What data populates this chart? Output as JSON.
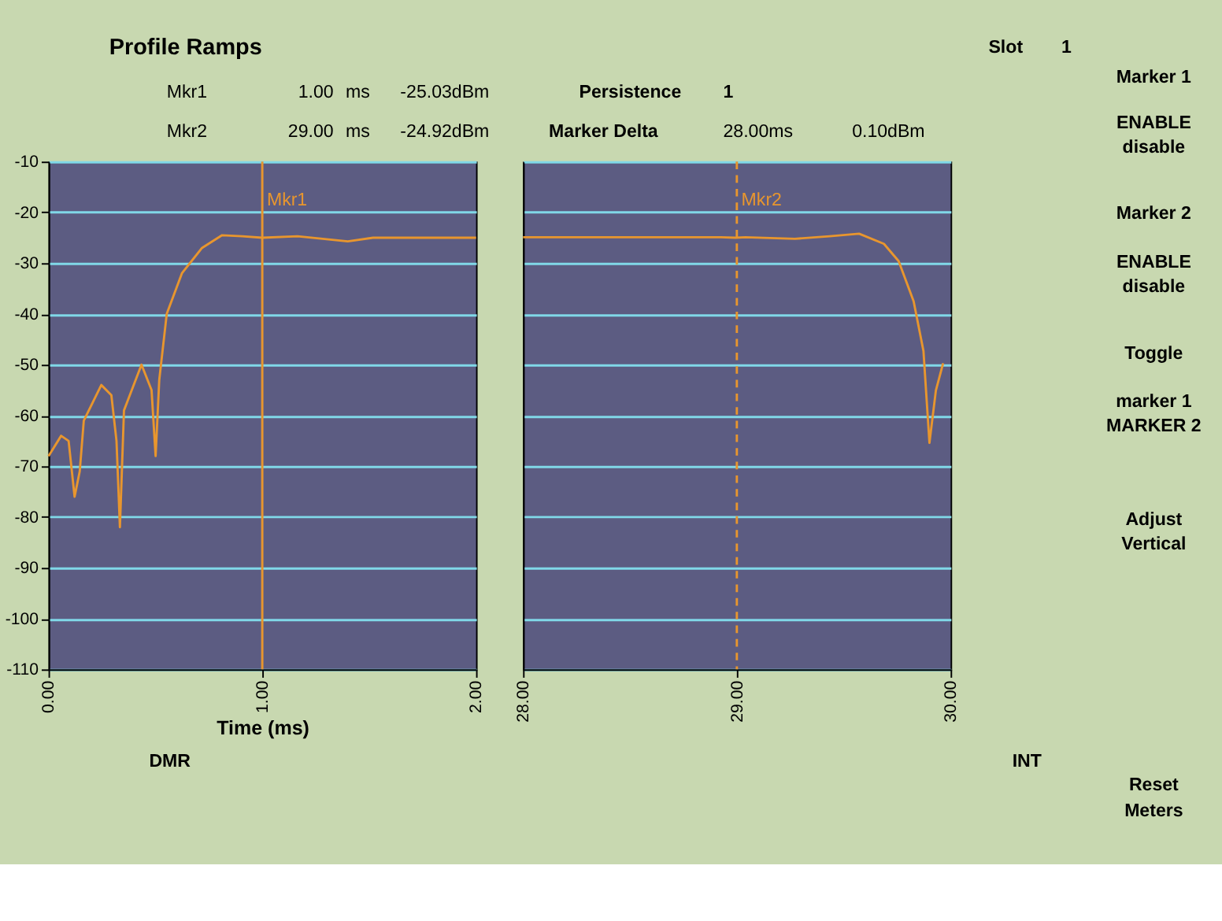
{
  "chart_data": [
    {
      "type": "line",
      "title": "Profile Ramps",
      "xlabel": "Time (ms)",
      "series": [
        {
          "color": "#e8962e",
          "x": [
            0,
            0.059,
            0.094,
            0.122,
            0.146,
            0.165,
            0.247,
            0.294,
            0.318,
            0.334,
            0.353,
            0.435,
            0.482,
            0.501,
            0.518,
            0.553,
            0.624,
            0.718,
            0.812,
            0.906,
            1.0,
            1.165,
            1.4,
            1.518,
            2.0
          ],
          "values": [
            -68,
            -64,
            -65,
            -76,
            -71,
            -61,
            -54,
            -56,
            -65,
            -82,
            -59,
            -50,
            -55,
            -68,
            -53,
            -40,
            -32,
            -27,
            -24.5,
            -24.7,
            -25,
            -24.7,
            -25.7,
            -25,
            -25
          ]
        }
      ],
      "xlim": [
        0,
        2
      ],
      "xticks": [
        {
          "value": 0,
          "label": "0.00"
        },
        {
          "value": 1,
          "label": "1.00"
        },
        {
          "value": 2,
          "label": "2.00"
        }
      ],
      "ylim": [
        -110,
        -10
      ],
      "yticks": [
        -10,
        -20,
        -30,
        -40,
        -50,
        -60,
        -70,
        -80,
        -90,
        -100,
        -110
      ],
      "grid": "y",
      "ref_lines": [
        {
          "axis": "x",
          "value": 1,
          "label": "Mkr1",
          "color": "#e8962e",
          "line_style": "solid"
        }
      ],
      "annotations": [
        "Slot",
        "1",
        "Mkr1",
        "1.00",
        "ms",
        "-25.03dBm",
        "Persistence",
        "1",
        "Mkr2",
        "29.00",
        "ms",
        "-24.92dBm",
        "Marker Delta",
        "28.00ms",
        "0.10dBm",
        "Marker 1",
        "ENABLE",
        "disable",
        "Marker 2",
        "ENABLE",
        "disable",
        "Toggle",
        "marker 1",
        "MARKER 2",
        "Adjust",
        "Vertical",
        "Reset",
        "Meters",
        "DMR",
        "INT"
      ]
    },
    {
      "type": "line",
      "series": [
        {
          "color": "#e8962e",
          "x": [
            28,
            28.925,
            28.994,
            29.04,
            29.272,
            29.434,
            29.572,
            29.688,
            29.757,
            29.827,
            29.873,
            29.901,
            29.931,
            29.965
          ],
          "values": [
            -24.9,
            -24.9,
            -25,
            -24.9,
            -25.2,
            -24.7,
            -24.2,
            -26.2,
            -29.6,
            -37.5,
            -47.3,
            -65.4,
            -55.1,
            -49.7
          ]
        }
      ],
      "xlim": [
        28,
        30
      ],
      "xticks": [
        {
          "value": 28,
          "label": "28.00"
        },
        {
          "value": 29,
          "label": "29.00"
        },
        {
          "value": 30,
          "label": "30.00"
        }
      ],
      "ylim": [
        -110,
        -10
      ],
      "yticks": [
        -10,
        -20,
        -30,
        -40,
        -50,
        -60,
        -70,
        -80,
        -90,
        -100,
        -110
      ],
      "grid": "y",
      "tick_labels": "x",
      "ref_lines": [
        {
          "axis": "x",
          "value": 29,
          "label": "Mkr2",
          "color": "#e8962e",
          "line_style": "dashed"
        }
      ]
    }
  ]
}
